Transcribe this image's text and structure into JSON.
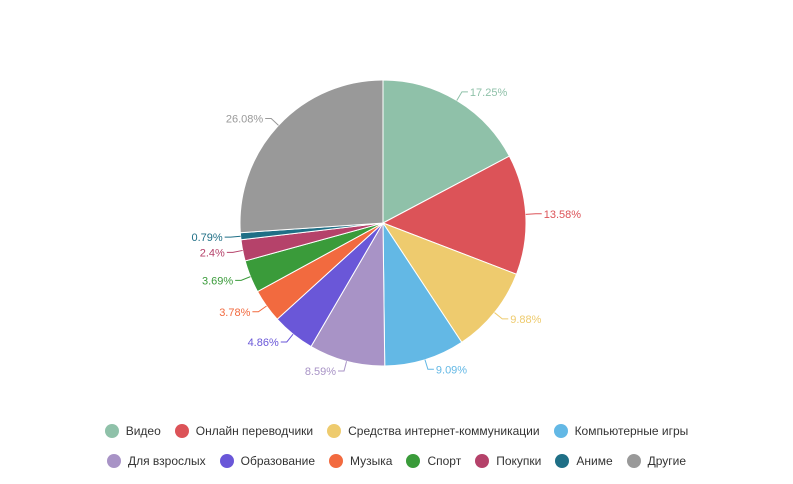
{
  "chart_data": {
    "type": "pie",
    "title": "",
    "legend_position": "bottom",
    "start_angle_deg": 0,
    "direction": "clockwise",
    "slices": [
      {
        "name": "Видео",
        "value": 17.25,
        "label": "17.25%",
        "color": "#8fc1a9"
      },
      {
        "name": "Онлайн переводчики",
        "value": 13.58,
        "label": "13.58%",
        "color": "#dc5358"
      },
      {
        "name": "Средства интернет-коммуникации",
        "value": 9.88,
        "label": "9.88%",
        "color": "#eecb6e"
      },
      {
        "name": "Компьютерные игры",
        "value": 9.09,
        "label": "9.09%",
        "color": "#63b8e5"
      },
      {
        "name": "Для взрослых",
        "value": 8.59,
        "label": "8.59%",
        "color": "#a893c6"
      },
      {
        "name": "Образование",
        "value": 4.86,
        "label": "4.86%",
        "color": "#6a57d8"
      },
      {
        "name": "Музыка",
        "value": 3.78,
        "label": "3.78%",
        "color": "#f26a3f"
      },
      {
        "name": "Спорт",
        "value": 3.69,
        "label": "3.69%",
        "color": "#3a9b3a"
      },
      {
        "name": "Покупки",
        "value": 2.4,
        "label": "2.4%",
        "color": "#b5426a"
      },
      {
        "name": "Аниме",
        "value": 0.79,
        "label": "0.79%",
        "color": "#1f6f86"
      },
      {
        "name": "Другие",
        "value": 26.08,
        "label": "26.08%",
        "color": "#999999"
      }
    ]
  }
}
